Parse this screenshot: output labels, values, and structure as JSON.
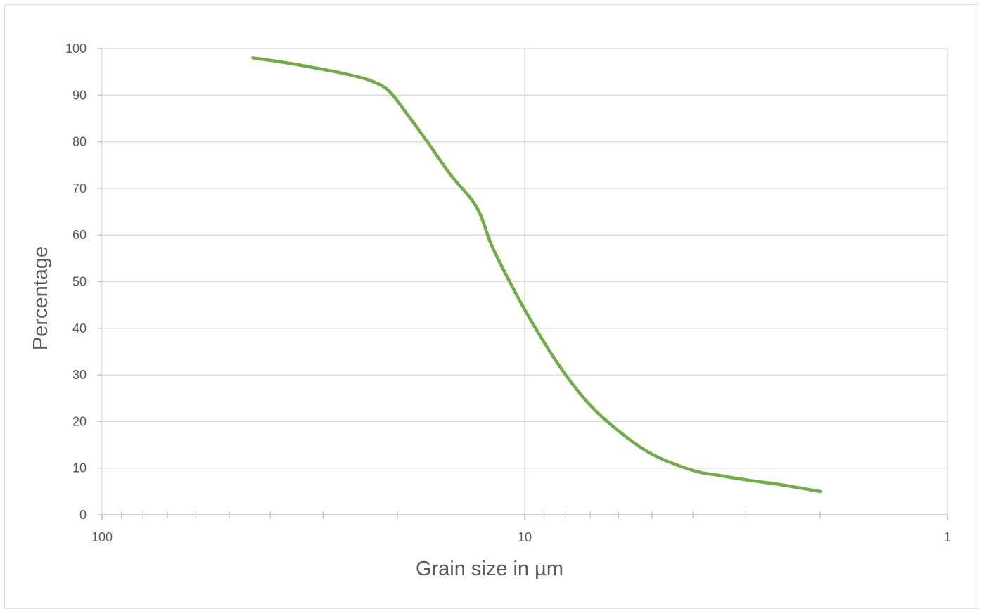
{
  "chart_data": {
    "type": "line",
    "title": "",
    "xlabel": "Grain size in µm",
    "ylabel": "Percentage",
    "x_scale": "log",
    "x_reversed": true,
    "xlim": [
      100,
      1
    ],
    "ylim": [
      0,
      100
    ],
    "x_ticks": [
      100,
      10,
      1
    ],
    "x_tick_labels": [
      "100",
      "10",
      "1"
    ],
    "y_ticks": [
      0,
      10,
      20,
      30,
      40,
      50,
      60,
      70,
      80,
      90,
      100
    ],
    "y_tick_labels": [
      "0",
      "10",
      "20",
      "30",
      "40",
      "50",
      "60",
      "70",
      "80",
      "90",
      "100"
    ],
    "grid": true,
    "legend": "none",
    "series": [
      {
        "color": "#70ad47",
        "x": [
          44,
          37,
          32,
          28,
          25,
          23,
          21,
          19,
          17,
          15,
          13,
          12,
          11,
          10,
          9,
          8,
          7,
          6,
          5,
          4,
          3.5,
          3,
          2.5,
          2
        ],
        "y": [
          98,
          97,
          96,
          95,
          94,
          93,
          91,
          86,
          80,
          73,
          66,
          58,
          51,
          44,
          37,
          30,
          23.5,
          18,
          13,
          9.5,
          8.5,
          7.5,
          6.5,
          5
        ]
      }
    ]
  }
}
